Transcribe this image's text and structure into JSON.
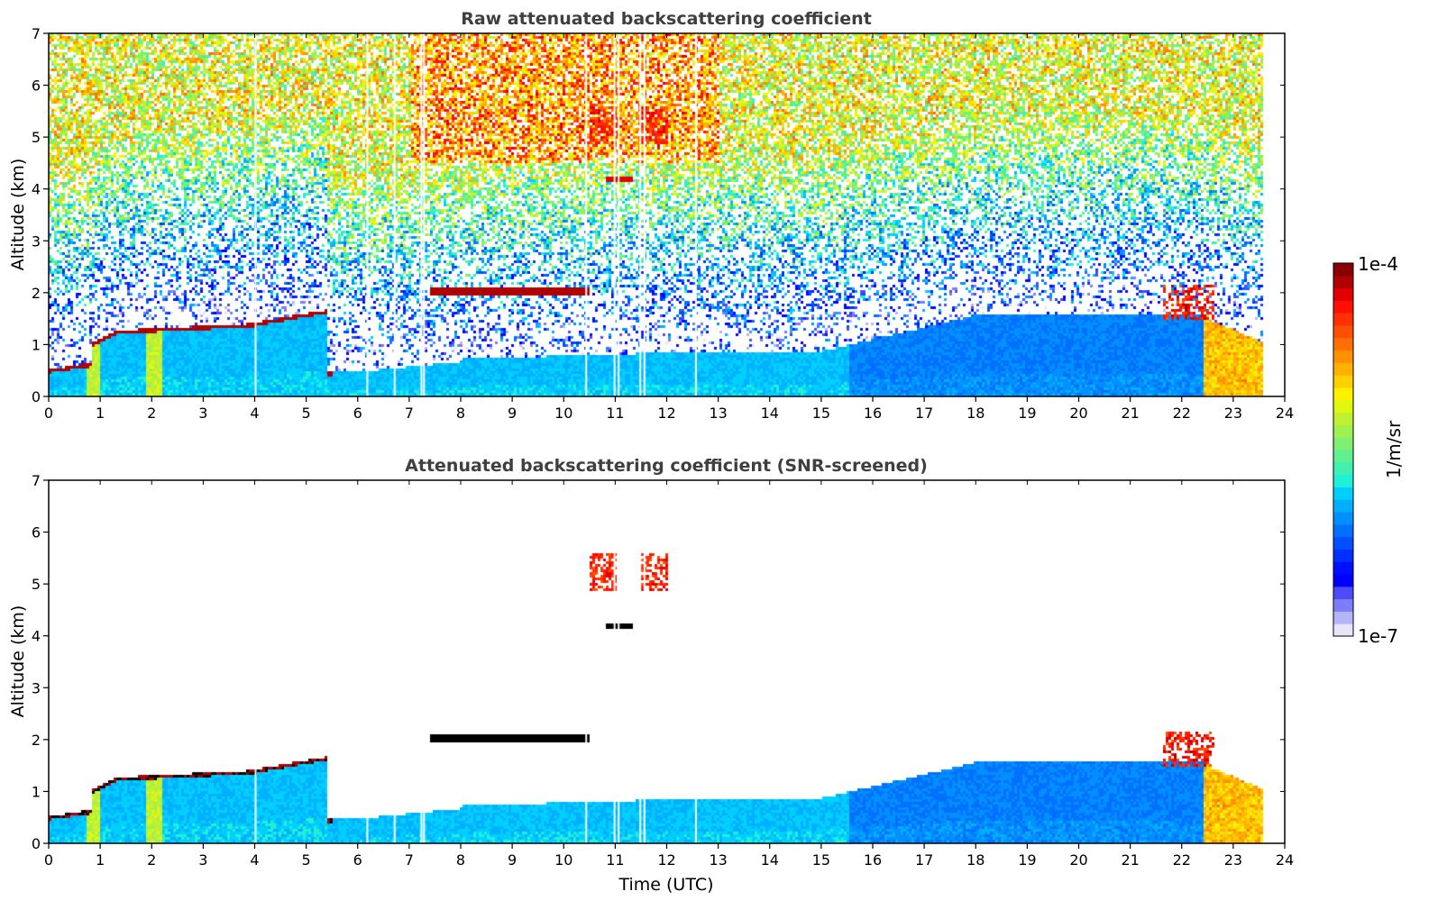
{
  "chart_data": [
    {
      "type": "heatmap",
      "title": "Raw attenuated backscattering coefficient",
      "xlabel": "",
      "ylabel": "Altitude (km)",
      "xlim": [
        0,
        24
      ],
      "ylim": [
        0,
        7
      ],
      "xticks": [
        "0",
        "1",
        "2",
        "3",
        "4",
        "5",
        "6",
        "7",
        "8",
        "9",
        "10",
        "11",
        "12",
        "13",
        "14",
        "15",
        "16",
        "17",
        "18",
        "19",
        "20",
        "21",
        "22",
        "23",
        "24"
      ],
      "yticks": [
        "0",
        "1",
        "2",
        "3",
        "4",
        "5",
        "6",
        "7"
      ],
      "data_end_time": 23.55,
      "gaps": [
        4.0,
        6.17,
        6.7,
        7.22,
        7.27,
        10.42,
        10.97,
        11.05,
        11.47,
        11.55,
        12.55
      ],
      "layers": [
        {
          "name": "boundary-layer-top",
          "points": [
            [
              0,
              0.55
            ],
            [
              0.7,
              0.7
            ],
            [
              0.85,
              1.05
            ],
            [
              1.3,
              1.3
            ],
            [
              2,
              1.3
            ],
            [
              3,
              1.3
            ],
            [
              4,
              1.45
            ],
            [
              5,
              1.65
            ],
            [
              5.4,
              1.7
            ]
          ]
        },
        {
          "name": "cloud-2km",
          "points": [
            [
              7.4,
              2.1
            ],
            [
              8.5,
              2.05
            ],
            [
              9,
              2.0
            ],
            [
              10,
              2.05
            ],
            [
              10.5,
              2.05
            ]
          ]
        },
        {
          "name": "low-layer",
          "points": [
            [
              4.5,
              0.3
            ],
            [
              5.5,
              0.3
            ],
            [
              6,
              0.25
            ],
            [
              6.5,
              0.25
            ],
            [
              7,
              0.45
            ],
            [
              8,
              0.5
            ]
          ]
        }
      ],
      "noise": true
    },
    {
      "type": "heatmap",
      "title": "Attenuated backscattering coefficient (SNR-screened)",
      "xlabel": "Time (UTC)",
      "ylabel": "Altitude (km)",
      "xlim": [
        0,
        24
      ],
      "ylim": [
        0,
        7
      ],
      "xticks": [
        "0",
        "1",
        "2",
        "3",
        "4",
        "5",
        "6",
        "7",
        "8",
        "9",
        "10",
        "11",
        "12",
        "13",
        "14",
        "15",
        "16",
        "17",
        "18",
        "19",
        "20",
        "21",
        "22",
        "23",
        "24"
      ],
      "yticks": [
        "0",
        "1",
        "2",
        "3",
        "4",
        "5",
        "6",
        "7"
      ],
      "data_end_time": 23.55,
      "gaps": [
        4.0,
        6.17,
        6.7,
        7.22,
        7.27,
        10.42,
        10.97,
        11.05,
        11.47,
        11.55,
        12.55
      ],
      "noise": false
    }
  ],
  "colorbar": {
    "label": "1/m/sr",
    "max_label": "1e-4",
    "min_label": "1e-7",
    "colors": [
      "#e6e6f8",
      "#b4b4f8",
      "#7d7dfa",
      "#4b4bfa",
      "#0000ff",
      "#0010ff",
      "#0030ff",
      "#0050ff",
      "#0070ff",
      "#0090ff",
      "#00b0ff",
      "#00d0ff",
      "#20f0d8",
      "#40f0b0",
      "#60f090",
      "#80f070",
      "#a0f050",
      "#c0f030",
      "#e0f810",
      "#fff000",
      "#ffd000",
      "#ffb000",
      "#ff9000",
      "#ff7000",
      "#ff5000",
      "#ff3000",
      "#ff1000",
      "#e00000",
      "#b00000",
      "#880000"
    ]
  }
}
